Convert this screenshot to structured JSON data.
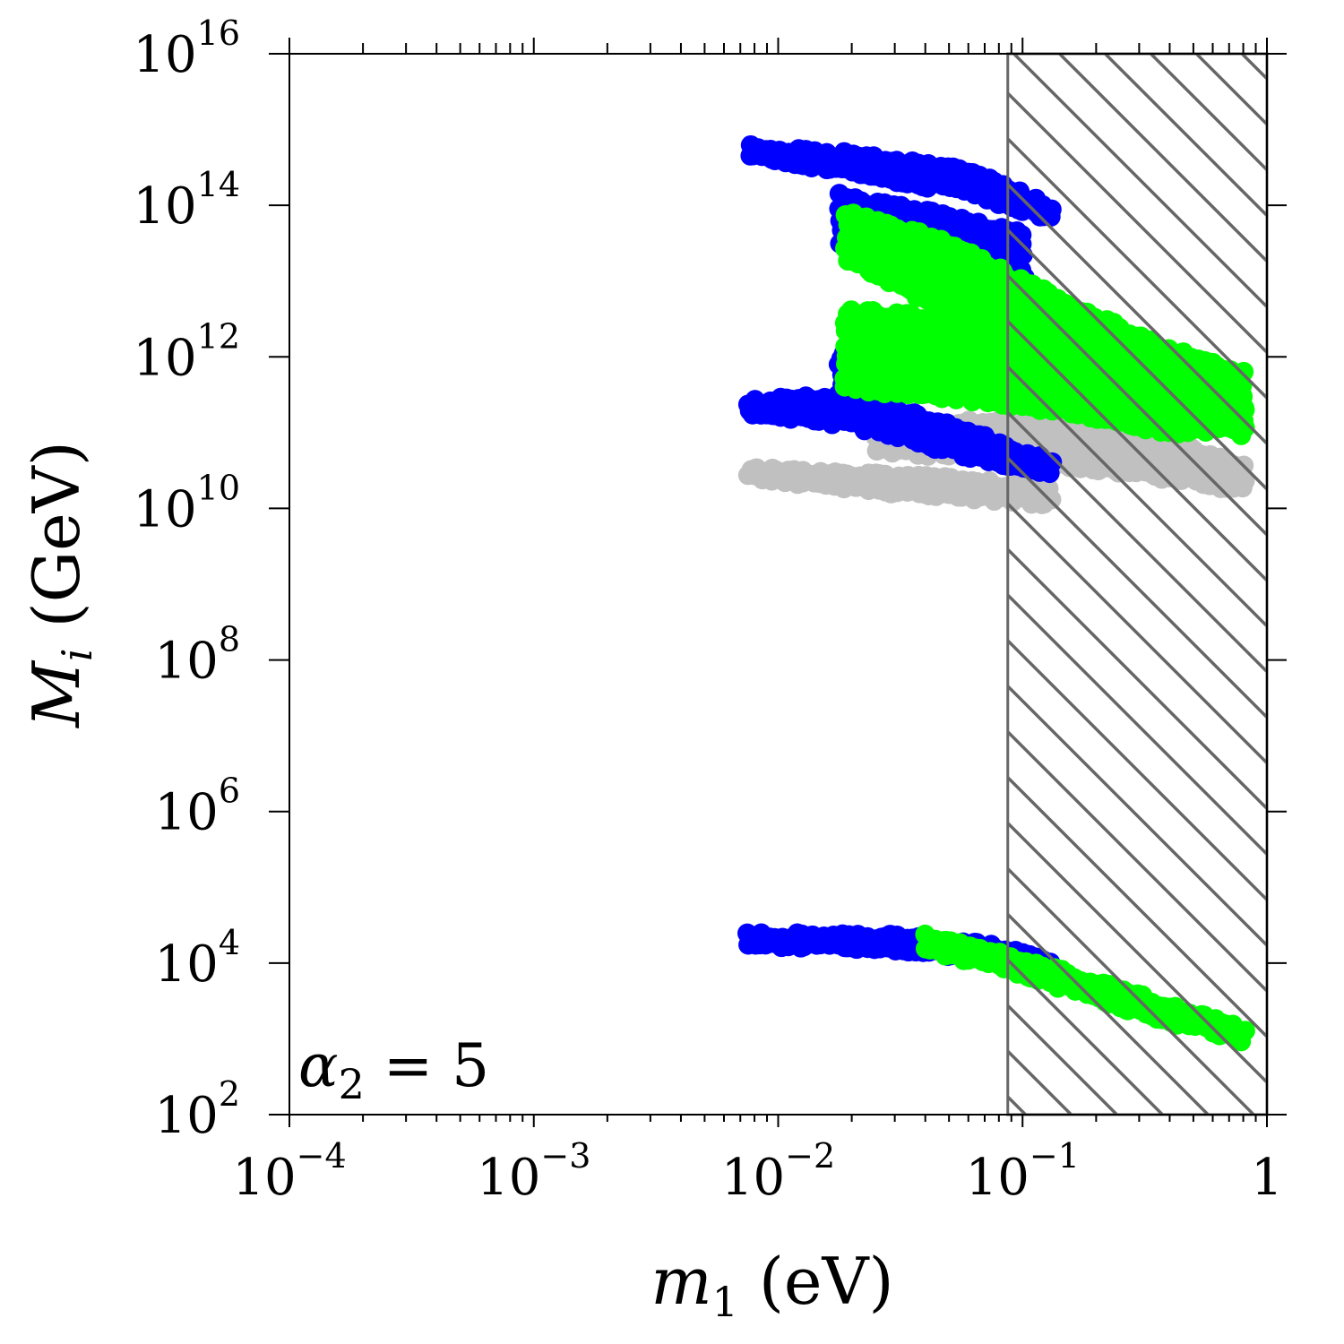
{
  "chart_data": {
    "type": "scatter",
    "x_scale": "log",
    "y_scale": "log",
    "xlim": [
      0.0001,
      1
    ],
    "ylim": [
      100,
      1e+16
    ],
    "grid": false,
    "xlabel": {
      "var": "m",
      "sub": "1",
      "unit": "(eV)"
    },
    "ylabel": {
      "var": "M",
      "sub": "i",
      "unit": "(GeV)"
    },
    "x_ticks": [
      {
        "value": 0.0001,
        "base": "10",
        "exp": "−4"
      },
      {
        "value": 0.001,
        "base": "10",
        "exp": "−3"
      },
      {
        "value": 0.01,
        "base": "10",
        "exp": "−2"
      },
      {
        "value": 0.1,
        "base": "10",
        "exp": "−1"
      },
      {
        "value": 1,
        "base": "1",
        "exp": ""
      }
    ],
    "y_ticks": [
      {
        "value": 100,
        "base": "10",
        "exp": "2"
      },
      {
        "value": 10000,
        "base": "10",
        "exp": "4"
      },
      {
        "value": 1000000,
        "base": "10",
        "exp": "6"
      },
      {
        "value": 100000000,
        "base": "10",
        "exp": "8"
      },
      {
        "value": 10000000000,
        "base": "10",
        "exp": "10"
      },
      {
        "value": 1000000000000,
        "base": "10",
        "exp": "12"
      },
      {
        "value": 100000000000000,
        "base": "10",
        "exp": "14"
      },
      {
        "value": 10000000000000000,
        "base": "10",
        "exp": "16"
      }
    ],
    "annotation": {
      "var": "α",
      "sub": "2",
      "rest": " = 5"
    },
    "excluded_region": {
      "x_from": 0.087,
      "x_to": 1,
      "pattern": "diagonal-hatch",
      "color": "#666666"
    },
    "colors": {
      "blue": "#0000ff",
      "green": "#00ff00",
      "gray": "#c0c0c0"
    },
    "series": [
      {
        "color": "gray",
        "bands": [
          {
            "x_range": [
              0.0076,
              0.13
            ],
            "upper": [
              [
                0.0076,
                32000000000.0
              ],
              [
                0.02,
                28000000000.0
              ],
              [
                0.05,
                24000000000.0
              ],
              [
                0.13,
                18000000000.0
              ]
            ],
            "lower": [
              [
                0.0076,
                27000000000.0
              ],
              [
                0.02,
                19000000000.0
              ],
              [
                0.05,
                15000000000.0
              ],
              [
                0.13,
                12000000000.0
              ]
            ]
          },
          {
            "x_range": [
              0.025,
              0.8
            ],
            "upper": [
              [
                0.025,
                120000000000.0
              ],
              [
                0.1,
                140000000000.0
              ],
              [
                0.3,
                100000000000.0
              ],
              [
                0.8,
                35000000000.0
              ]
            ],
            "lower": [
              [
                0.025,
                60000000000.0
              ],
              [
                0.1,
                45000000000.0
              ],
              [
                0.3,
                30000000000.0
              ],
              [
                0.8,
                18000000000.0
              ]
            ]
          }
        ]
      },
      {
        "color": "blue",
        "bands": [
          {
            "x_range": [
              0.0076,
              0.13
            ],
            "upper": [
              [
                0.0076,
                600000000000000.0
              ],
              [
                0.02,
                450000000000000.0
              ],
              [
                0.06,
                280000000000000.0
              ],
              [
                0.13,
                90000000000000.0
              ]
            ],
            "lower": [
              [
                0.0076,
                450000000000000.0
              ],
              [
                0.02,
                280000000000000.0
              ],
              [
                0.06,
                150000000000000.0
              ],
              [
                0.13,
                70000000000000.0
              ]
            ]
          },
          {
            "x_range": [
              0.018,
              0.1
            ],
            "upper": [
              [
                0.018,
                130000000000000.0
              ],
              [
                0.04,
                80000000000000.0
              ],
              [
                0.1,
                40000000000000.0
              ]
            ],
            "lower": [
              [
                0.018,
                30000000000000.0
              ],
              [
                0.04,
                10000000000000.0
              ],
              [
                0.1,
                4000000000000.0
              ]
            ]
          },
          {
            "x_range": [
              0.018,
              0.1
            ],
            "upper": [
              [
                0.018,
                1000000000000.0
              ],
              [
                0.04,
                2500000000000.0
              ],
              [
                0.1,
                2000000000000.0
              ]
            ],
            "lower": [
              [
                0.018,
                300000000000.0
              ],
              [
                0.04,
                400000000000.0
              ],
              [
                0.1,
                300000000000.0
              ]
            ]
          },
          {
            "x_range": [
              0.0076,
              0.13
            ],
            "upper": [
              [
                0.0076,
                250000000000.0
              ],
              [
                0.02,
                300000000000.0
              ],
              [
                0.06,
                100000000000.0
              ],
              [
                0.13,
                40000000000.0
              ]
            ],
            "lower": [
              [
                0.0076,
                190000000000.0
              ],
              [
                0.02,
                130000000000.0
              ],
              [
                0.06,
                50000000000.0
              ],
              [
                0.13,
                30000000000.0
              ]
            ]
          },
          {
            "x_range": [
              0.0076,
              0.13
            ],
            "upper": [
              [
                0.0076,
                23000.0
              ],
              [
                0.03,
                22000.0
              ],
              [
                0.08,
                16000.0
              ],
              [
                0.13,
                10000.0
              ]
            ],
            "lower": [
              [
                0.0076,
                18000.0
              ],
              [
                0.03,
                16000.0
              ],
              [
                0.08,
                11000.0
              ],
              [
                0.13,
                8500.0
              ]
            ]
          }
        ],
        "points": [
          [
            0.04,
            20000000000000.0
          ],
          [
            0.04,
            1000000000000.0
          ]
        ]
      },
      {
        "color": "green",
        "bands": [
          {
            "x_range": [
              0.019,
              0.8
            ],
            "upper": [
              [
                0.019,
                80000000000000.0
              ],
              [
                0.05,
                30000000000000.0
              ],
              [
                0.15,
                5000000000000.0
              ],
              [
                0.4,
                1200000000000.0
              ],
              [
                0.8,
                600000000000.0
              ]
            ],
            "lower": [
              [
                0.019,
                20000000000000.0
              ],
              [
                0.05,
                4000000000000.0
              ],
              [
                0.15,
                1000000000000.0
              ],
              [
                0.4,
                200000000000.0
              ],
              [
                0.8,
                100000000000.0
              ]
            ]
          },
          {
            "x_range": [
              0.019,
              0.8
            ],
            "upper": [
              [
                0.019,
                4000000000000.0
              ],
              [
                0.05,
                3000000000000.0
              ],
              [
                0.15,
                2000000000000.0
              ],
              [
                0.4,
                1000000000000.0
              ],
              [
                0.8,
                400000000000.0
              ]
            ],
            "lower": [
              [
                0.019,
                400000000000.0
              ],
              [
                0.05,
                300000000000.0
              ],
              [
                0.15,
                200000000000.0
              ],
              [
                0.4,
                100000000000.0
              ],
              [
                0.8,
                120000000000.0
              ]
            ]
          },
          {
            "x_range": [
              0.04,
              0.8
            ],
            "upper": [
              [
                0.04,
                22000.0
              ],
              [
                0.1,
                11000.0
              ],
              [
                0.3,
                3500.0
              ],
              [
                0.8,
                1300.0
              ]
            ],
            "lower": [
              [
                0.04,
                16000.0
              ],
              [
                0.1,
                7500.0
              ],
              [
                0.3,
                2300.0
              ],
              [
                0.8,
                1000.0
              ]
            ]
          }
        ]
      }
    ]
  }
}
